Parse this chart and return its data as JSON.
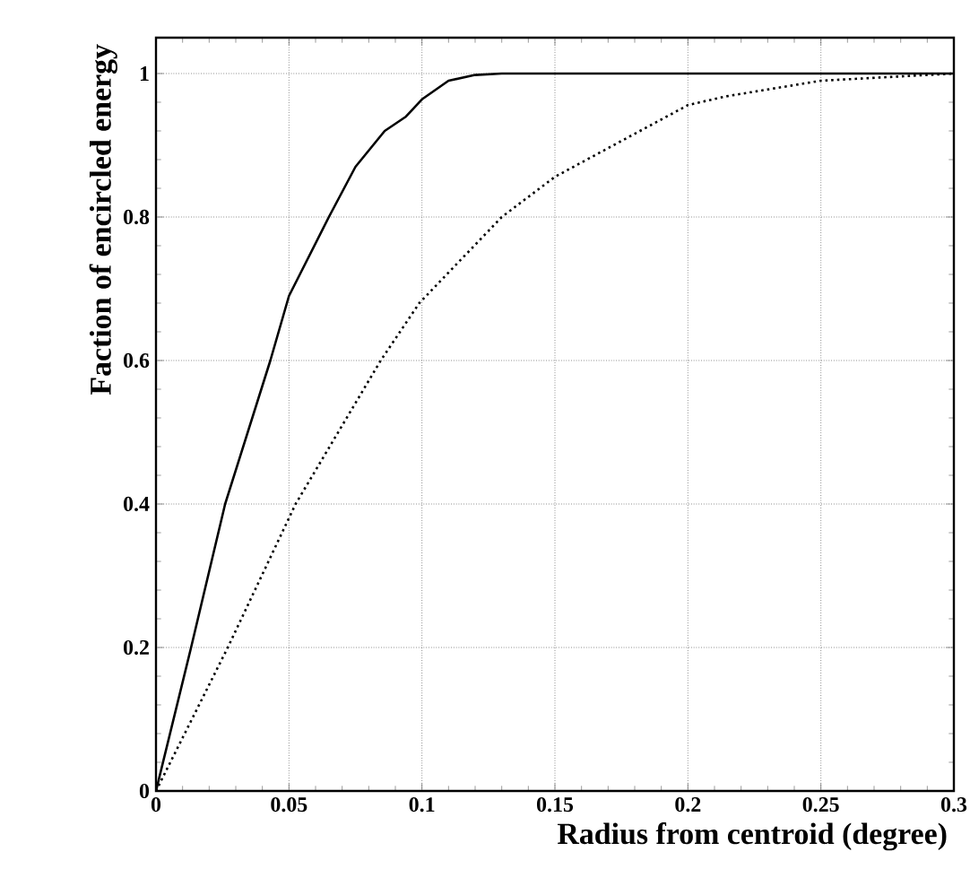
{
  "chart_data": {
    "type": "line",
    "xlabel": "Radius from centroid (degree)",
    "ylabel": "Faction of encircled energy",
    "xlim": [
      0,
      0.3
    ],
    "ylim": [
      0,
      1.05
    ],
    "xticks": [
      0,
      0.05,
      0.1,
      0.15,
      0.2,
      0.25,
      0.3
    ],
    "yticks": [
      0,
      0.2,
      0.4,
      0.6,
      0.8,
      1
    ],
    "grid": true,
    "series": [
      {
        "color": "#000000",
        "line_style": "solid",
        "x": [
          0,
          0.0132,
          0.026,
          0.043,
          0.05,
          0.065,
          0.075,
          0.086,
          0.094,
          0.1,
          0.11,
          0.12,
          0.13,
          0.2,
          0.3
        ],
        "values": [
          0,
          0.2,
          0.4,
          0.6,
          0.69,
          0.8,
          0.87,
          0.92,
          0.94,
          0.964,
          0.99,
          0.998,
          1,
          1,
          1
        ]
      },
      {
        "color": "#000000",
        "line_style": "dotted",
        "x": [
          0,
          0.027,
          0.0525,
          0.0845,
          0.099,
          0.13,
          0.15,
          0.2,
          0.214,
          0.25,
          0.3
        ],
        "values": [
          0,
          0.2,
          0.4,
          0.6,
          0.68,
          0.8,
          0.856,
          0.956,
          0.968,
          0.99,
          1
        ]
      }
    ]
  }
}
